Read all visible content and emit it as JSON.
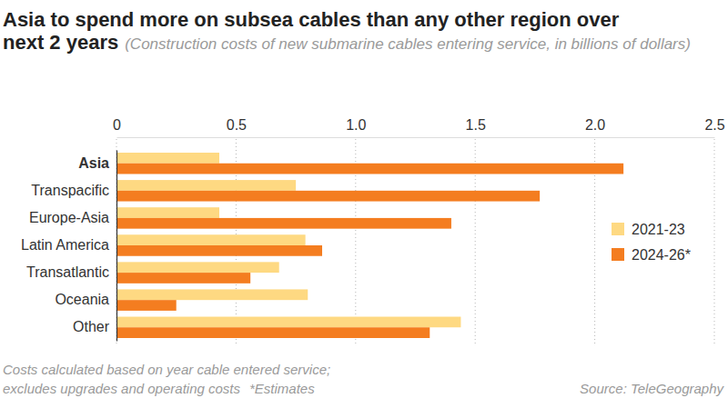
{
  "chart_data": {
    "type": "bar",
    "orientation": "horizontal",
    "title": "Asia to spend more on subsea cables than any other region over next 2 years",
    "subtitle": "(Construction costs of new submarine cables entering service, in billions of dollars)",
    "categories": [
      "Asia",
      "Transpacific",
      "Europe-Asia",
      "Latin America",
      "Transatlantic",
      "Oceania",
      "Other"
    ],
    "series": [
      {
        "name": "2021-23",
        "color": "#fed982",
        "values": [
          0.43,
          0.75,
          0.43,
          0.79,
          0.68,
          0.8,
          1.44
        ]
      },
      {
        "name": "2024-26*",
        "color": "#f47d20",
        "values": [
          2.12,
          1.77,
          1.4,
          0.86,
          0.56,
          0.25,
          1.31
        ]
      }
    ],
    "xlim": [
      0,
      2.5
    ],
    "xticks": [
      0,
      0.5,
      {
        "value": 1,
        "label": "1.0"
      },
      1.5,
      {
        "value": 2,
        "label": "2.0"
      },
      2.5
    ],
    "grid": true,
    "legend": "right",
    "footnotes": [
      "Costs calculated based on year cable entered service;",
      "excludes upgrades and operating costs",
      "*Estimates"
    ],
    "source": "Source: TeleGeography"
  }
}
